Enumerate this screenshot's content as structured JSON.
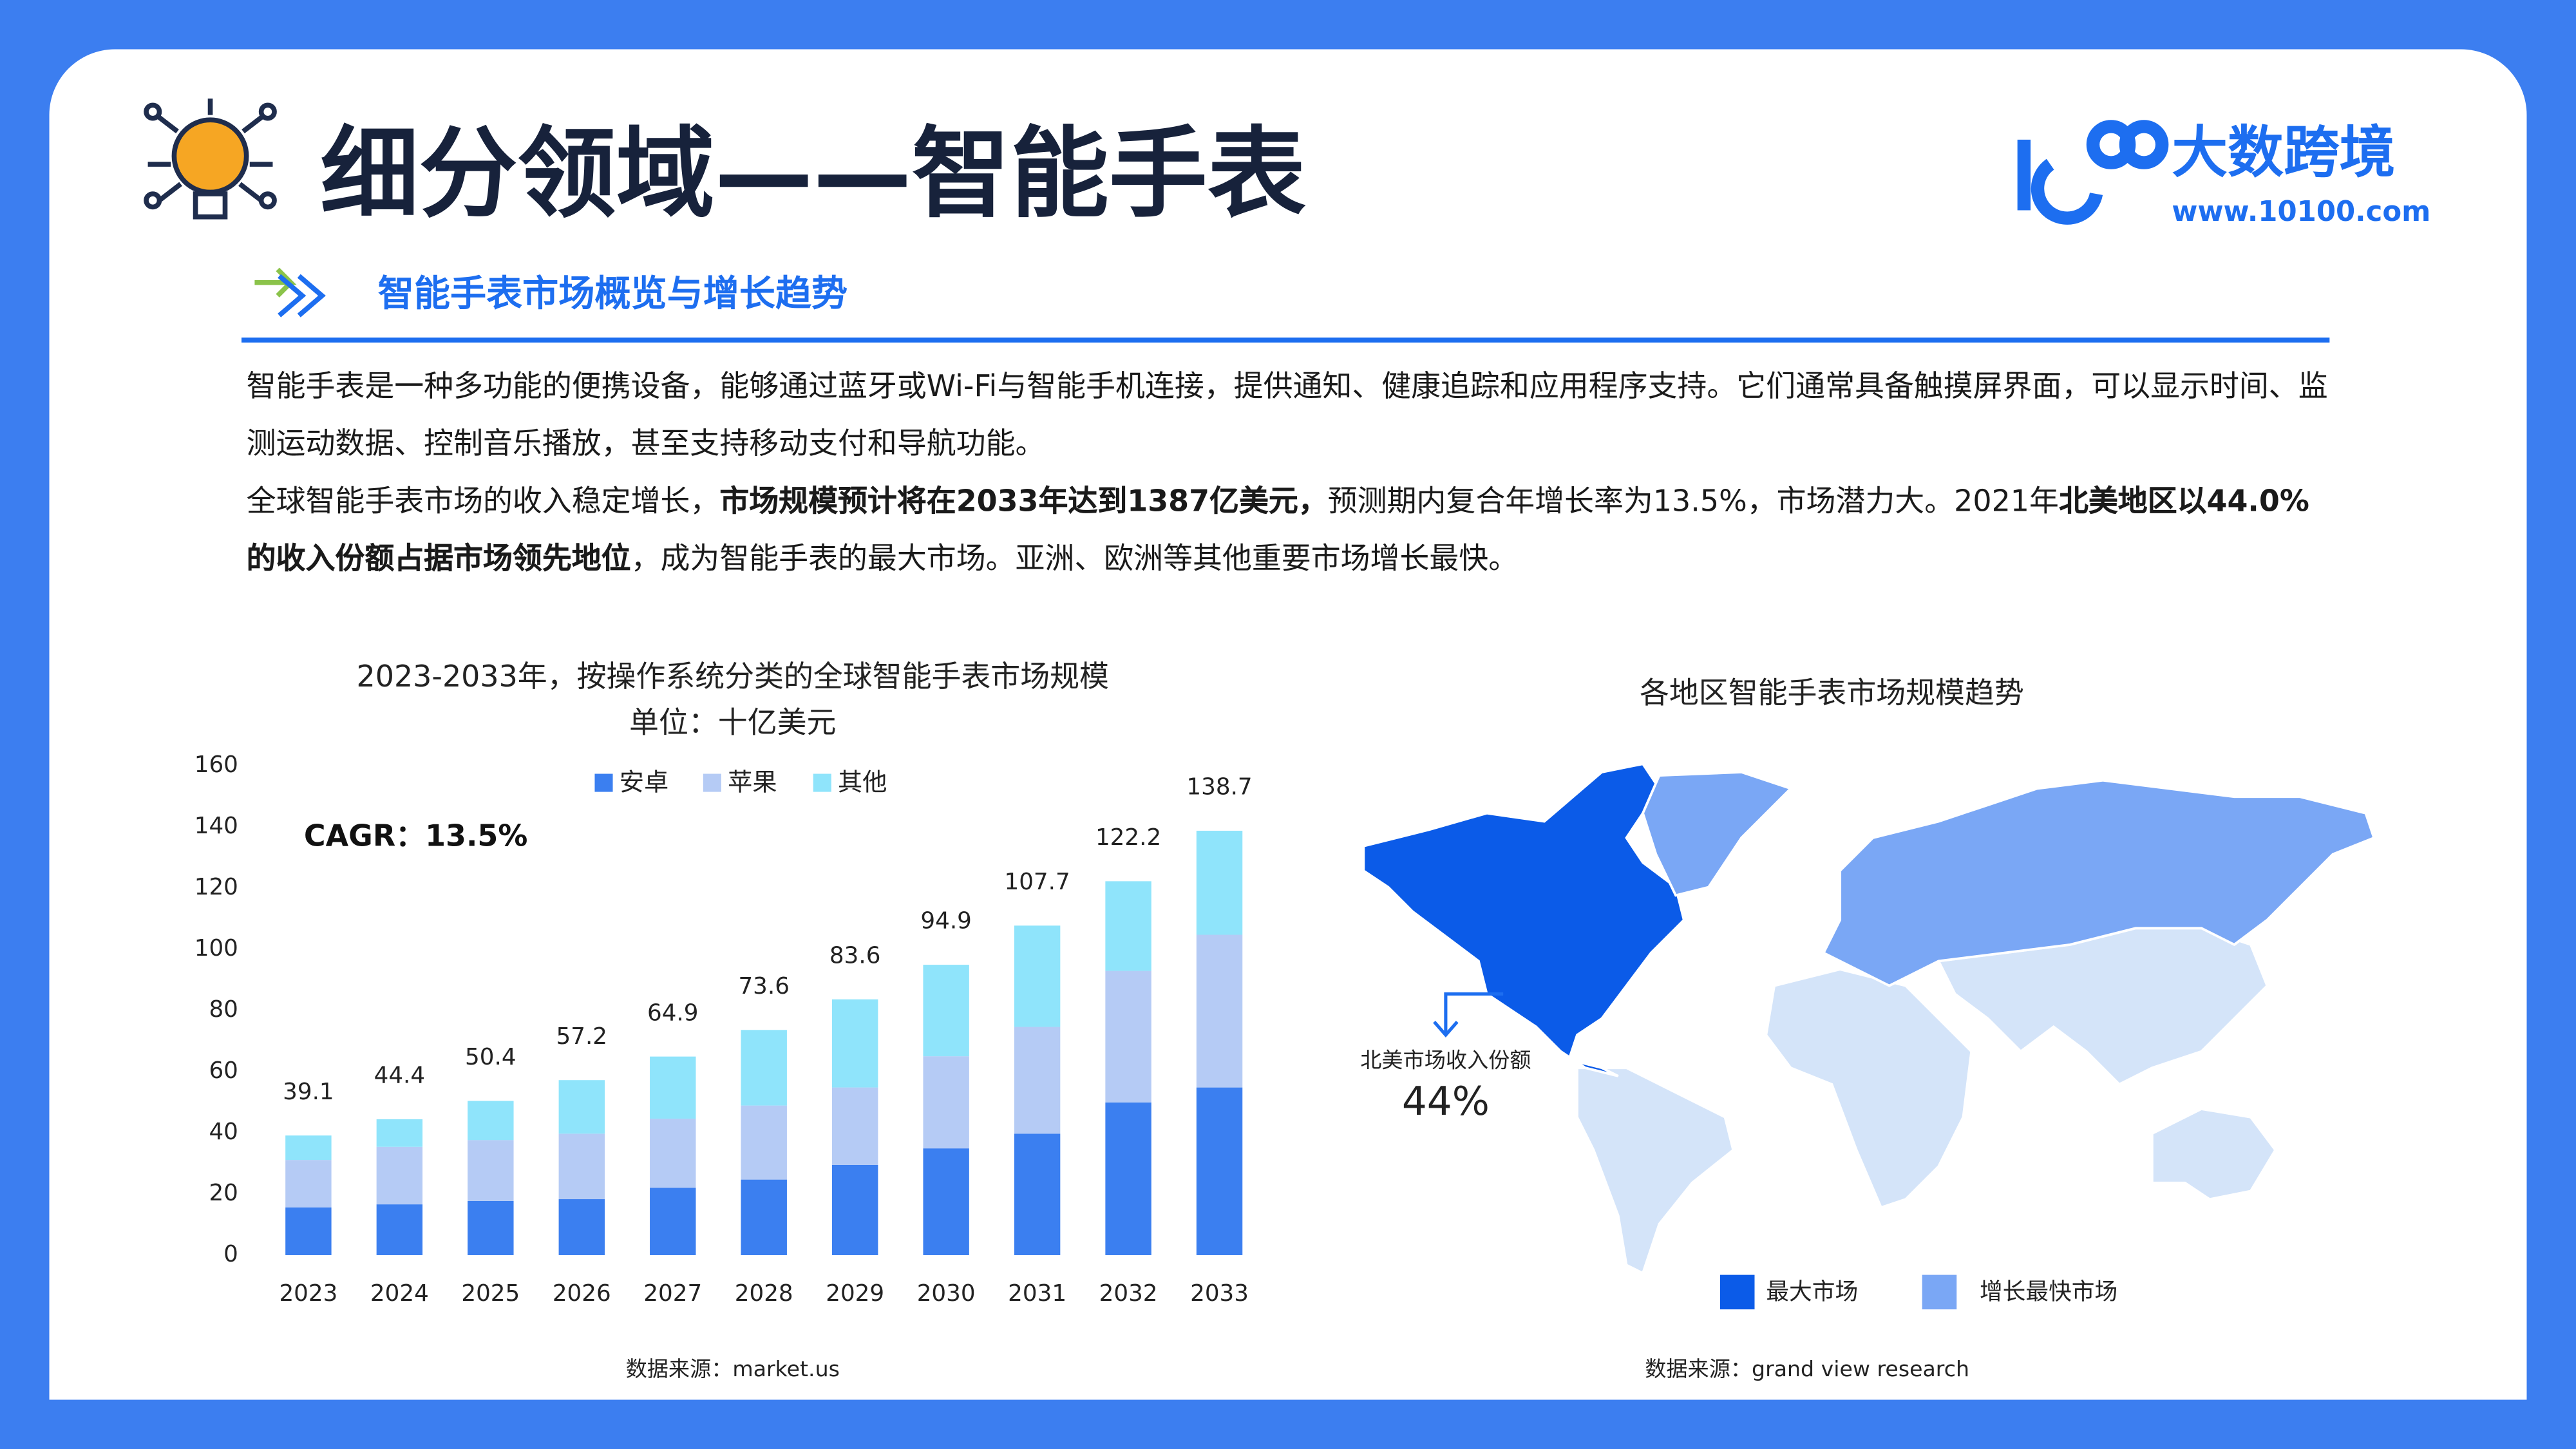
{
  "header": {
    "title": "细分领域——智能手表",
    "brand": "大数跨境",
    "url": "www.10100.com"
  },
  "section_title": "智能手表市场概览与增长趋势",
  "paragraphs": [
    {
      "runs": [
        {
          "text": "智能手表是一种多功能的便携设备，能够通过蓝牙或Wi-Fi与智能手机连接，提供通知、健康追踪和应用程序支持。它们通常具备触摸屏界面，可以显示时间、监测运动数据、控制音乐播放，甚至支持移动支付和导航功能。",
          "bold": false
        }
      ]
    },
    {
      "runs": [
        {
          "text": "全球智能手表市场的收入稳定增长，",
          "bold": false
        },
        {
          "text": "市场规模预计将在2033年达到1387亿美元，",
          "bold": true
        },
        {
          "text": "预测期内复合年增长率为13.5%，市场潜力大。2021年",
          "bold": false
        },
        {
          "text": "北美地区以44.0%的收入份额占据市场领先地位",
          "bold": true
        },
        {
          "text": "，成为智能手表的最大市场。亚洲、欧洲等其他重要市场增长最快。",
          "bold": false
        }
      ]
    }
  ],
  "chart_data": {
    "type": "stacked-bar",
    "title": "2023-2033年，按操作系统分类的全球智能手表市场规模",
    "subtitle": "单位：十亿美元",
    "annotation": "CAGR：13.5%",
    "categories": [
      "2023",
      "2024",
      "2025",
      "2026",
      "2027",
      "2028",
      "2029",
      "2030",
      "2031",
      "2032",
      "2033"
    ],
    "series": [
      {
        "name": "安卓",
        "color": "#3b7ff0",
        "values": [
          15.6,
          16.6,
          17.7,
          18.3,
          22.0,
          24.7,
          29.5,
          34.9,
          39.7,
          49.9,
          54.8
        ]
      },
      {
        "name": "苹果",
        "color": "#b5cbf5",
        "values": [
          15.5,
          18.8,
          19.9,
          21.4,
          22.6,
          24.2,
          25.3,
          30.1,
          34.9,
          43.0,
          49.9
        ]
      },
      {
        "name": "其他",
        "color": "#8fe4fb",
        "values": [
          8.0,
          9.0,
          12.8,
          17.5,
          20.3,
          24.7,
          28.8,
          29.9,
          33.1,
          29.3,
          34.0
        ]
      }
    ],
    "totals": [
      39.1,
      44.4,
      50.4,
      57.2,
      64.9,
      73.6,
      83.6,
      94.9,
      107.7,
      122.2,
      138.7
    ],
    "ylim": [
      0,
      160
    ],
    "yticks": [
      0,
      20,
      40,
      60,
      80,
      100,
      120,
      140,
      160
    ],
    "legend": "top",
    "source": "数据来源：market.us"
  },
  "map": {
    "title": "各地区智能手表市场规模趋势",
    "annotation": {
      "label": "北美市场收入份额",
      "share": {
        "value": 44,
        "label": "44%"
      }
    },
    "legend": [
      {
        "name": "最大市场",
        "color": "#0b5be8"
      },
      {
        "name": "增长最快市场",
        "color": "#7aa7f5"
      }
    ],
    "source": "数据来源：grand view research"
  }
}
